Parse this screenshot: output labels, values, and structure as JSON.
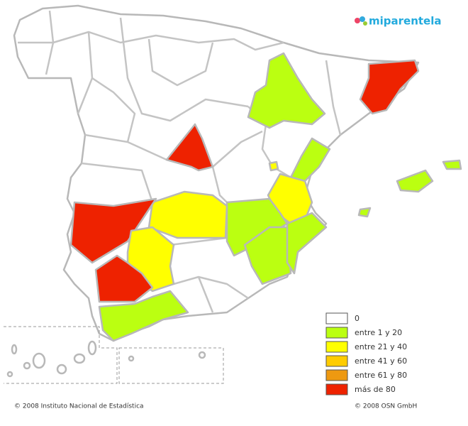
{
  "logo": "miparentela",
  "legend": [
    {
      "label": "0",
      "color": "#ffffff"
    },
    {
      "label": "entre 1 y 20",
      "color": "#bbff11"
    },
    {
      "label": "entre 21 y 40",
      "color": "#ffff00"
    },
    {
      "label": "entre 41 y 60",
      "color": "#ffcc00"
    },
    {
      "label": "entre 61 y 80",
      "color": "#ee9911"
    },
    {
      "label": "más de 80",
      "color": "#ee2200"
    }
  ],
  "footer": {
    "left": "© 2008 Instituto Nacional de Estadística",
    "right": "© 2008 OSN GmbH"
  }
}
